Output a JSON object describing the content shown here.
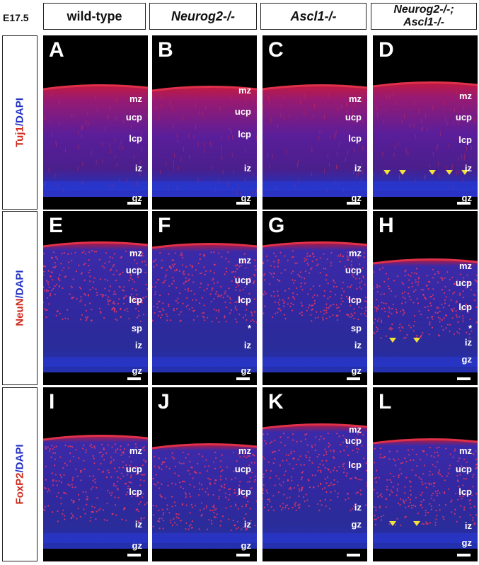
{
  "stage_label": "E17.5",
  "columns": [
    "wild-type",
    "Neurog2-/-",
    "Ascl1-/-",
    "Neurog2-/-;",
    "Ascl1-/-"
  ],
  "rows": [
    {
      "marker": "Tuj1",
      "sep": "/",
      "counterstain": "DAPI"
    },
    {
      "marker": "NeuN",
      "sep": "/",
      "counterstain": "DAPI"
    },
    {
      "marker": "FoxP2",
      "sep": "/",
      "counterstain": "DAPI"
    }
  ],
  "panels": [
    {
      "letter": "A",
      "layers": [
        "mz",
        "ucp",
        "lcp",
        "iz",
        "gz"
      ]
    },
    {
      "letter": "B",
      "layers": [
        "mz",
        "ucp",
        "lcp",
        "iz",
        "gz"
      ]
    },
    {
      "letter": "C",
      "layers": [
        "mz",
        "ucp",
        "lcp",
        "iz",
        "gz"
      ]
    },
    {
      "letter": "D",
      "layers": [
        "mz",
        "ucp",
        "lcp",
        "iz",
        "gz"
      ]
    },
    {
      "letter": "E",
      "layers": [
        "mz",
        "ucp",
        "lcp",
        "sp",
        "iz",
        "gz"
      ]
    },
    {
      "letter": "F",
      "layers": [
        "mz",
        "ucp",
        "lcp",
        "*",
        "iz",
        "gz"
      ]
    },
    {
      "letter": "G",
      "layers": [
        "mz",
        "ucp",
        "lcp",
        "sp",
        "iz",
        "gz"
      ]
    },
    {
      "letter": "H",
      "layers": [
        "mz",
        "ucp",
        "lcp",
        "*",
        "iz",
        "gz"
      ]
    },
    {
      "letter": "I",
      "layers": [
        "mz",
        "ucp",
        "lcp",
        "iz",
        "gz"
      ]
    },
    {
      "letter": "J",
      "layers": [
        "mz",
        "ucp",
        "lcp",
        "iz",
        "gz"
      ]
    },
    {
      "letter": "K",
      "layers": [
        "mz",
        "ucp",
        "lcp",
        "iz",
        "gz"
      ]
    },
    {
      "letter": "L",
      "layers": [
        "mz",
        "ucp",
        "lcp",
        "iz",
        "gz"
      ]
    }
  ],
  "colors": {
    "tuj1": "#d12a1c",
    "dapi": "#2331c4",
    "arrowhead": "#f2e33a",
    "text": "#ffffff"
  }
}
